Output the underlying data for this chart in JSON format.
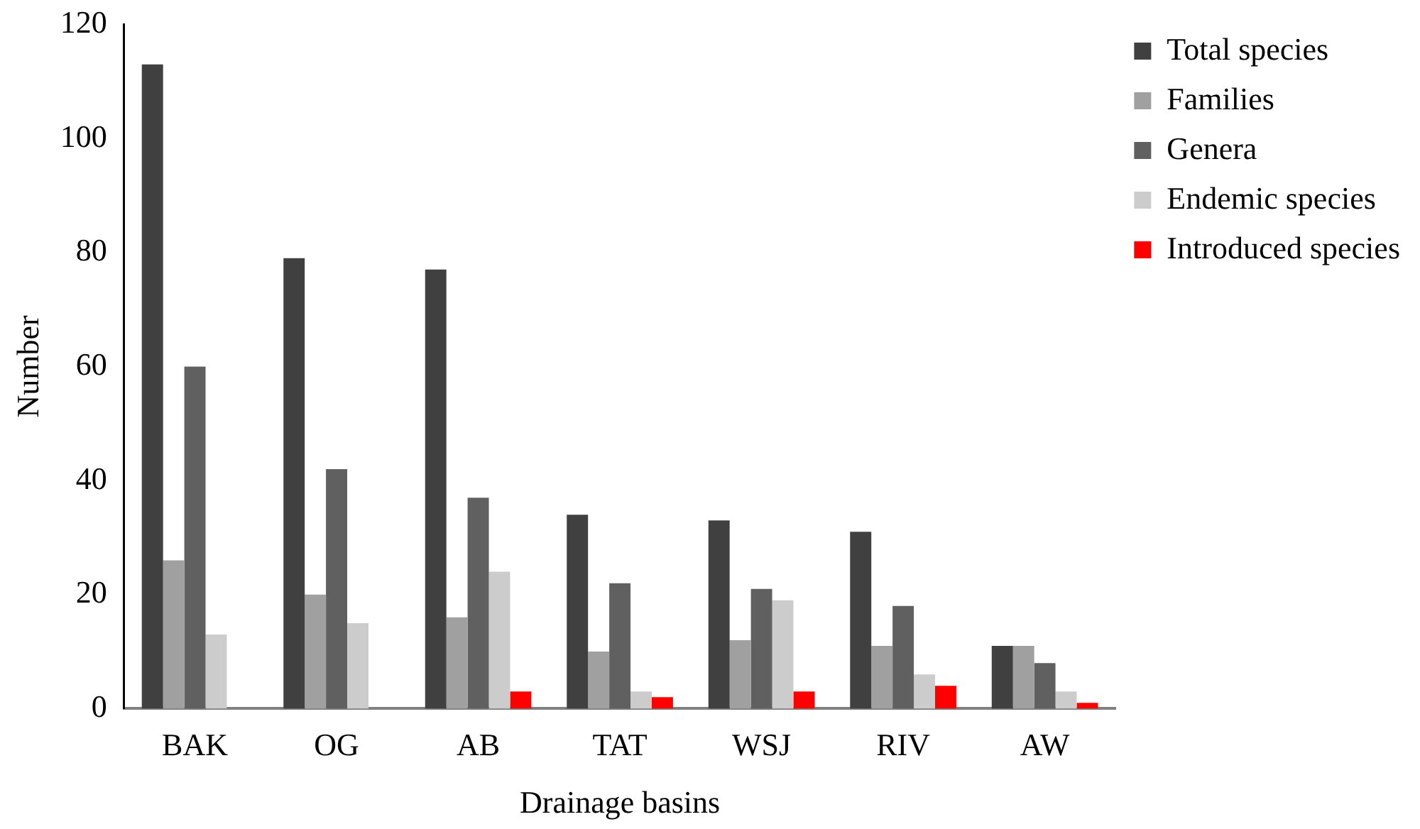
{
  "chart_data": {
    "type": "bar",
    "xlabel": "Drainage basins",
    "ylabel": "Number",
    "categories": [
      "BAK",
      "OG",
      "AB",
      "TAT",
      "WSJ",
      "RIV",
      "AW"
    ],
    "series": [
      {
        "name": "Total species",
        "color": "#404040",
        "values": [
          113,
          79,
          77,
          34,
          33,
          31,
          11
        ]
      },
      {
        "name": "Families",
        "color": "#a0a0a0",
        "values": [
          26,
          20,
          16,
          10,
          12,
          11,
          11
        ]
      },
      {
        "name": "Genera",
        "color": "#606060",
        "values": [
          60,
          42,
          37,
          22,
          21,
          18,
          8
        ]
      },
      {
        "name": "Endemic species",
        "color": "#cccccc",
        "values": [
          13,
          15,
          24,
          3,
          19,
          6,
          3
        ]
      },
      {
        "name": "Introduced species",
        "color": "#ff0000",
        "values": [
          0,
          0,
          3,
          2,
          3,
          4,
          1
        ]
      }
    ],
    "ylim": [
      0,
      120
    ],
    "yticks": [
      0,
      20,
      40,
      60,
      80,
      100,
      120
    ],
    "grid": false,
    "legend": "top right"
  }
}
